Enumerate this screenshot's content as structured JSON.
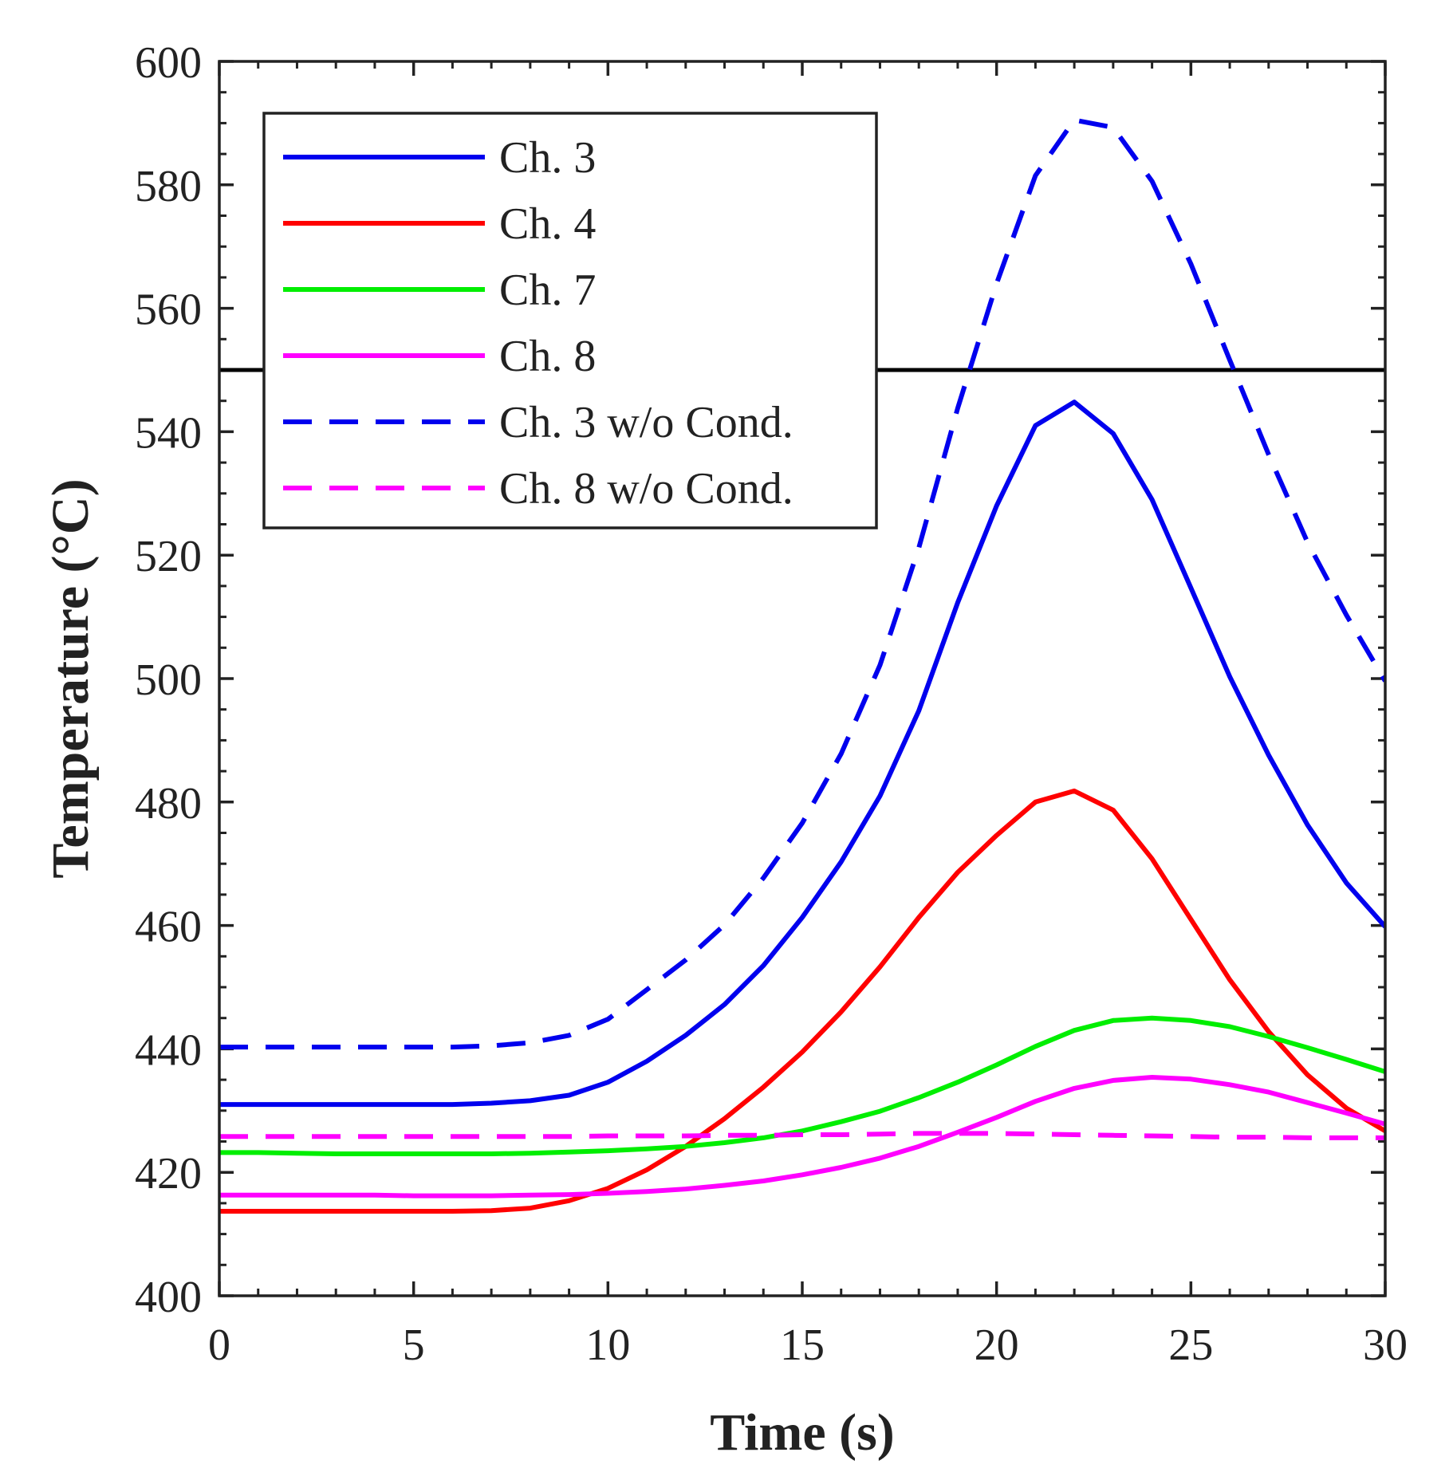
{
  "chart_data": {
    "type": "line",
    "title": "",
    "xlabel": "Time (s)",
    "ylabel": "Temperature (°C)",
    "xlim": [
      0,
      30
    ],
    "ylim": [
      400,
      600
    ],
    "xticks": [
      0,
      5,
      10,
      15,
      20,
      25,
      30
    ],
    "yticks": [
      400,
      420,
      440,
      460,
      480,
      500,
      520,
      540,
      560,
      580,
      600
    ],
    "grid": false,
    "legend_position": "top-left",
    "reference_line": {
      "y": 550,
      "color": "#000000"
    },
    "x": [
      0,
      1,
      2,
      3,
      4,
      5,
      6,
      7,
      8,
      9,
      10,
      11,
      12,
      13,
      14,
      15,
      16,
      17,
      18,
      19,
      20,
      21,
      22,
      23,
      24,
      25,
      26,
      27,
      28,
      29,
      30
    ],
    "series": [
      {
        "name": "Ch. 3",
        "color": "#0000ee",
        "style": "solid",
        "values": [
          431,
          431,
          431,
          431,
          431,
          431,
          431,
          431.2,
          431.6,
          432.5,
          434.6,
          438,
          442.2,
          447.2,
          453.5,
          461.3,
          470.3,
          481,
          494.8,
          512.3,
          528,
          541,
          544.8,
          539.7,
          529,
          514.7,
          500.3,
          487.6,
          476.3,
          466.9,
          459.8
        ]
      },
      {
        "name": "Ch. 4",
        "color": "#ff0000",
        "style": "solid",
        "values": [
          413.7,
          413.7,
          413.7,
          413.7,
          413.7,
          413.7,
          413.7,
          413.8,
          414.2,
          415.4,
          417.4,
          420.4,
          424.2,
          428.7,
          433.8,
          439.5,
          446,
          453.3,
          461.3,
          468.6,
          474.6,
          480,
          481.8,
          478.7,
          470.8,
          461,
          451.2,
          442.8,
          435.8,
          430.4,
          426.7
        ]
      },
      {
        "name": "Ch. 7",
        "color": "#00ee00",
        "style": "solid",
        "values": [
          423.2,
          423.2,
          423.1,
          423,
          423,
          423,
          423,
          423,
          423.1,
          423.3,
          423.5,
          423.8,
          424.2,
          424.8,
          425.6,
          426.7,
          428.2,
          429.9,
          432.1,
          434.6,
          437.4,
          440.4,
          443,
          444.6,
          445,
          444.6,
          443.6,
          442,
          440.2,
          438.3,
          436.3
        ]
      },
      {
        "name": "Ch. 8",
        "color": "#ff00ff",
        "style": "solid",
        "values": [
          416.3,
          416.3,
          416.3,
          416.3,
          416.3,
          416.2,
          416.2,
          416.2,
          416.3,
          416.4,
          416.6,
          416.9,
          417.3,
          417.9,
          418.6,
          419.6,
          420.8,
          422.3,
          424.2,
          426.5,
          428.9,
          431.5,
          433.6,
          434.9,
          435.4,
          435.1,
          434.2,
          433,
          431.3,
          429.6,
          427.8
        ]
      },
      {
        "name": "Ch. 3 w/o Cond.",
        "color": "#0000ee",
        "style": "dashed",
        "values": [
          440.3,
          440.3,
          440.3,
          440.3,
          440.3,
          440.3,
          440.3,
          440.5,
          441,
          442.2,
          444.8,
          449.6,
          454.4,
          460.1,
          467.7,
          476.6,
          487.8,
          502.2,
          521.2,
          543.8,
          564,
          581.5,
          590.5,
          589.3,
          580.6,
          567.2,
          551.6,
          536.3,
          522.1,
          510.3,
          499.6
        ]
      },
      {
        "name": "Ch. 8 w/o Cond.",
        "color": "#ff00ff",
        "style": "dashed",
        "values": [
          425.8,
          425.8,
          425.8,
          425.8,
          425.8,
          425.8,
          425.8,
          425.8,
          425.8,
          425.8,
          425.9,
          425.9,
          425.9,
          426,
          426,
          426.1,
          426.1,
          426.2,
          426.3,
          426.3,
          426.3,
          426.2,
          426.1,
          426,
          425.9,
          425.8,
          425.7,
          425.7,
          425.6,
          425.6,
          425.6
        ]
      }
    ]
  }
}
